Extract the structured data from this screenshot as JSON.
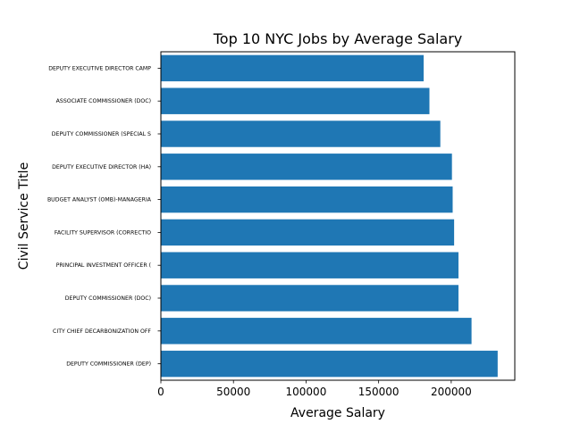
{
  "chart_data": {
    "type": "bar",
    "orientation": "horizontal",
    "title": "Top 10 NYC Jobs by Average Salary",
    "xlabel": "Average Salary",
    "ylabel": "Civil Service Title",
    "categories": [
      "DEPUTY COMMISSIONER (DEP)",
      "CITY CHIEF DECARBONIZATION OFF",
      "DEPUTY COMMISSIONER (DOC)",
      "PRINCIPAL INVESTMENT OFFICER (",
      "FACILITY SUPERVISOR (CORRECTIO",
      "BUDGET ANALYST (OMB)-MANAGERIA",
      "DEPUTY EXECUTIVE DIRECTOR (HA)",
      "DEPUTY COMMISSIONER (SPECIAL S",
      "ASSOCIATE COMMISSIONER (DOC)",
      "DEPUTY EXECUTIVE DIRECTOR CAMP"
    ],
    "values": [
      232000,
      214000,
      205000,
      205000,
      202000,
      201000,
      200500,
      192500,
      185000,
      181000
    ],
    "xticks": [
      0,
      50000,
      100000,
      150000,
      200000
    ],
    "xlim": [
      0,
      243800
    ],
    "grid": false,
    "bar_color": "#1f77b4"
  }
}
